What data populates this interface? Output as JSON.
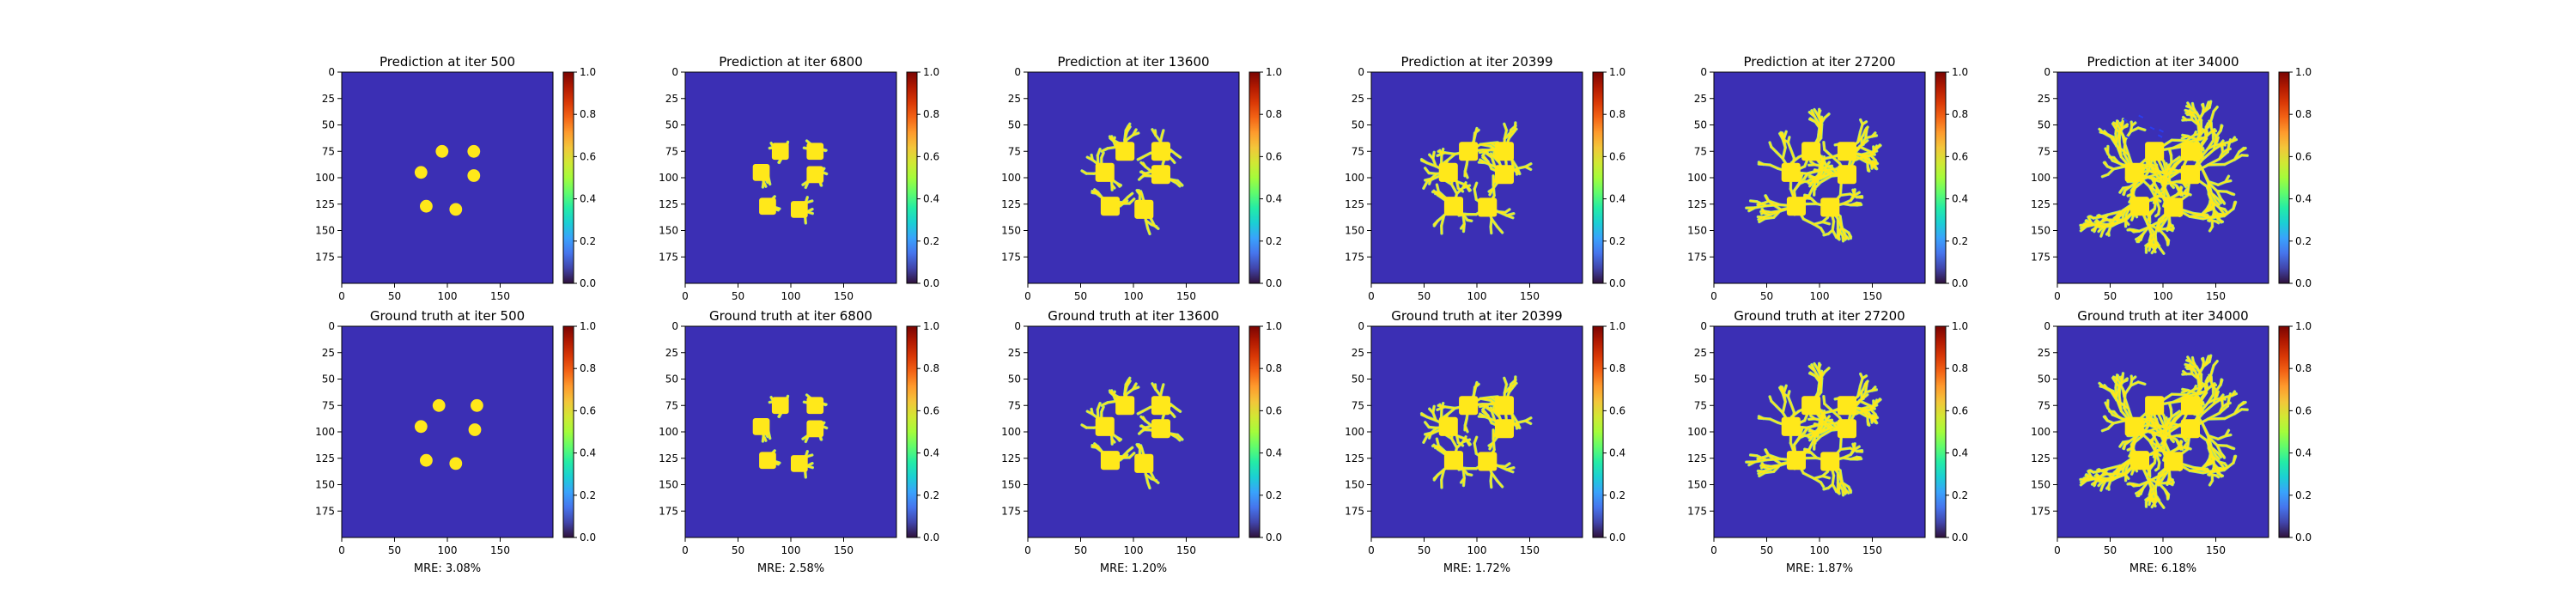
{
  "figure": {
    "background": "#ffffff",
    "image_extent": [
      0,
      200
    ],
    "colorbar": {
      "range": [
        0,
        1
      ],
      "ticks": [
        "0.0",
        "0.2",
        "0.4",
        "0.6",
        "0.8",
        "1.0"
      ],
      "gradient": [
        "#30123b",
        "#4145ab",
        "#4675ed",
        "#39a2fc",
        "#1bcfd4",
        "#24eca6",
        "#61fc6c",
        "#a4fc3b",
        "#d1e834",
        "#f3c63a",
        "#fe9b2d",
        "#f36315",
        "#d93806",
        "#b11901",
        "#7a0402"
      ]
    },
    "colors": {
      "background_value_color": "#3b2fb4",
      "structure_color": "#ffe81a",
      "edge_color": "#9ee37d",
      "stray_color": "#2a3cf0"
    }
  },
  "chart_data": [
    {
      "type": "heatmap",
      "row": 0,
      "col": 0,
      "title": "Prediction at iter 500",
      "xticks": [
        "0",
        "50",
        "100",
        "150"
      ],
      "yticks": [
        "0",
        "25",
        "50",
        "75",
        "100",
        "125",
        "150",
        "175"
      ],
      "value_range": [
        0,
        1
      ],
      "grains": [
        [
          95,
          75
        ],
        [
          125,
          75
        ],
        [
          75,
          95
        ],
        [
          125,
          98
        ],
        [
          80,
          127
        ],
        [
          108,
          130
        ]
      ],
      "grain_size": 6,
      "dendrite_level": 0,
      "stray": false
    },
    {
      "type": "heatmap",
      "row": 0,
      "col": 1,
      "title": "Prediction at iter 6800",
      "xticks": [
        "0",
        "50",
        "100",
        "150"
      ],
      "yticks": [
        "0",
        "25",
        "50",
        "75",
        "100",
        "125",
        "150",
        "175"
      ],
      "value_range": [
        0,
        1
      ],
      "grains": [
        [
          90,
          75
        ],
        [
          123,
          75
        ],
        [
          72,
          95
        ],
        [
          123,
          97
        ],
        [
          78,
          127
        ],
        [
          108,
          130
        ]
      ],
      "grain_size": 8,
      "dendrite_level": 1,
      "stray": false
    },
    {
      "type": "heatmap",
      "row": 0,
      "col": 2,
      "title": "Prediction at iter 13600",
      "xticks": [
        "0",
        "50",
        "100",
        "150"
      ],
      "yticks": [
        "0",
        "25",
        "50",
        "75",
        "100",
        "125",
        "150",
        "175"
      ],
      "value_range": [
        0,
        1
      ],
      "grains": [
        [
          92,
          75
        ],
        [
          126,
          75
        ],
        [
          73,
          95
        ],
        [
          126,
          97
        ],
        [
          78,
          127
        ],
        [
          110,
          130
        ]
      ],
      "grain_size": 9,
      "dendrite_level": 2,
      "stray": false
    },
    {
      "type": "heatmap",
      "row": 0,
      "col": 3,
      "title": "Prediction at iter 20399",
      "xticks": [
        "0",
        "50",
        "100",
        "150"
      ],
      "yticks": [
        "0",
        "25",
        "50",
        "75",
        "100",
        "125",
        "150",
        "175"
      ],
      "value_range": [
        0,
        1
      ],
      "grains": [
        [
          92,
          75
        ],
        [
          126,
          75
        ],
        [
          73,
          95
        ],
        [
          126,
          97
        ],
        [
          78,
          127
        ],
        [
          110,
          128
        ]
      ],
      "grain_size": 9,
      "dendrite_level": 3,
      "stray": false
    },
    {
      "type": "heatmap",
      "row": 0,
      "col": 4,
      "title": "Prediction at iter 27200",
      "xticks": [
        "0",
        "50",
        "100",
        "150"
      ],
      "yticks": [
        "0",
        "25",
        "50",
        "75",
        "100",
        "125",
        "150",
        "175"
      ],
      "value_range": [
        0,
        1
      ],
      "grains": [
        [
          92,
          75
        ],
        [
          126,
          75
        ],
        [
          73,
          95
        ],
        [
          126,
          97
        ],
        [
          78,
          127
        ],
        [
          110,
          128
        ]
      ],
      "grain_size": 9,
      "dendrite_level": 4,
      "stray": false
    },
    {
      "type": "heatmap",
      "row": 0,
      "col": 5,
      "title": "Prediction at iter 34000",
      "xticks": [
        "0",
        "50",
        "100",
        "150"
      ],
      "yticks": [
        "0",
        "25",
        "50",
        "75",
        "100",
        "125",
        "150",
        "175"
      ],
      "value_range": [
        0,
        1
      ],
      "grains": [
        [
          92,
          75
        ],
        [
          126,
          75
        ],
        [
          73,
          95
        ],
        [
          126,
          97
        ],
        [
          78,
          127
        ],
        [
          110,
          128
        ]
      ],
      "grain_size": 9,
      "dendrite_level": 6,
      "stray": true
    },
    {
      "type": "heatmap",
      "row": 1,
      "col": 0,
      "title": "Ground truth at iter 500",
      "xticks": [
        "0",
        "50",
        "100",
        "150"
      ],
      "yticks": [
        "0",
        "25",
        "50",
        "75",
        "100",
        "125",
        "150",
        "175"
      ],
      "value_range": [
        0,
        1
      ],
      "grains": [
        [
          92,
          75
        ],
        [
          128,
          75
        ],
        [
          75,
          95
        ],
        [
          126,
          98
        ],
        [
          80,
          127
        ],
        [
          108,
          130
        ]
      ],
      "grain_size": 6,
      "dendrite_level": 0,
      "stray": false,
      "metric": "MRE: 3.08%"
    },
    {
      "type": "heatmap",
      "row": 1,
      "col": 1,
      "title": "Ground truth at iter 6800",
      "xticks": [
        "0",
        "50",
        "100",
        "150"
      ],
      "yticks": [
        "0",
        "25",
        "50",
        "75",
        "100",
        "125",
        "150",
        "175"
      ],
      "value_range": [
        0,
        1
      ],
      "grains": [
        [
          90,
          75
        ],
        [
          123,
          75
        ],
        [
          72,
          95
        ],
        [
          123,
          97
        ],
        [
          78,
          127
        ],
        [
          108,
          130
        ]
      ],
      "grain_size": 8,
      "dendrite_level": 1,
      "stray": false,
      "metric": "MRE: 2.58%"
    },
    {
      "type": "heatmap",
      "row": 1,
      "col": 2,
      "title": "Ground truth at iter 13600",
      "xticks": [
        "0",
        "50",
        "100",
        "150"
      ],
      "yticks": [
        "0",
        "25",
        "50",
        "75",
        "100",
        "125",
        "150",
        "175"
      ],
      "value_range": [
        0,
        1
      ],
      "grains": [
        [
          92,
          75
        ],
        [
          126,
          75
        ],
        [
          73,
          95
        ],
        [
          126,
          97
        ],
        [
          78,
          127
        ],
        [
          110,
          130
        ]
      ],
      "grain_size": 9,
      "dendrite_level": 2,
      "stray": false,
      "metric": "MRE: 1.20%"
    },
    {
      "type": "heatmap",
      "row": 1,
      "col": 3,
      "title": "Ground truth at iter 20399",
      "xticks": [
        "0",
        "50",
        "100",
        "150"
      ],
      "yticks": [
        "0",
        "25",
        "50",
        "75",
        "100",
        "125",
        "150",
        "175"
      ],
      "value_range": [
        0,
        1
      ],
      "grains": [
        [
          92,
          75
        ],
        [
          126,
          75
        ],
        [
          73,
          95
        ],
        [
          126,
          97
        ],
        [
          78,
          127
        ],
        [
          110,
          128
        ]
      ],
      "grain_size": 9,
      "dendrite_level": 3,
      "stray": false,
      "metric": "MRE: 1.72%"
    },
    {
      "type": "heatmap",
      "row": 1,
      "col": 4,
      "title": "Ground truth at iter 27200",
      "xticks": [
        "0",
        "50",
        "100",
        "150"
      ],
      "yticks": [
        "0",
        "25",
        "50",
        "75",
        "100",
        "125",
        "150",
        "175"
      ],
      "value_range": [
        0,
        1
      ],
      "grains": [
        [
          92,
          75
        ],
        [
          126,
          75
        ],
        [
          73,
          95
        ],
        [
          126,
          97
        ],
        [
          78,
          127
        ],
        [
          110,
          128
        ]
      ],
      "grain_size": 9,
      "dendrite_level": 4,
      "stray": false,
      "metric": "MRE: 1.87%"
    },
    {
      "type": "heatmap",
      "row": 1,
      "col": 5,
      "title": "Ground truth at iter 34000",
      "xticks": [
        "0",
        "50",
        "100",
        "150"
      ],
      "yticks": [
        "0",
        "25",
        "50",
        "75",
        "100",
        "125",
        "150",
        "175"
      ],
      "value_range": [
        0,
        1
      ],
      "grains": [
        [
          92,
          75
        ],
        [
          126,
          75
        ],
        [
          73,
          95
        ],
        [
          126,
          97
        ],
        [
          78,
          127
        ],
        [
          110,
          128
        ]
      ],
      "grain_size": 9,
      "dendrite_level": 6,
      "stray": false,
      "metric": "MRE: 6.18%"
    }
  ]
}
